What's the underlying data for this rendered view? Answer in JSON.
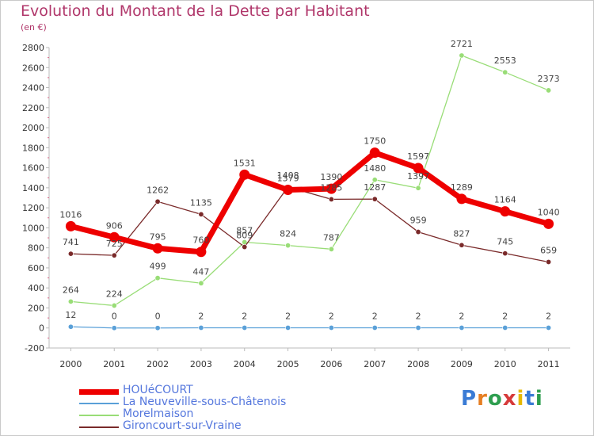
{
  "header": {
    "title": "Evolution du Montant de la Dette par Habitant",
    "subtitle": "(en €)"
  },
  "logo": {
    "text": "Proxiti",
    "colors": [
      "#3a7bd5",
      "#e67e22",
      "#2e9e4f",
      "#d63a3a",
      "#e6b800",
      "#3a7bd5",
      "#2e9e4f"
    ]
  },
  "chart_data": {
    "type": "line",
    "title": "Evolution du Montant de la Dette par Habitant",
    "ylabel": "(en €)",
    "x": [
      "2000",
      "2001",
      "2002",
      "2003",
      "2004",
      "2005",
      "2006",
      "2007",
      "2008",
      "2009",
      "2010",
      "2011"
    ],
    "ylim": [
      -200,
      2800
    ],
    "yticks": [
      -200,
      0,
      200,
      400,
      600,
      800,
      1000,
      1200,
      1400,
      1600,
      1800,
      2000,
      2200,
      2400,
      2600,
      2800
    ],
    "grid": false,
    "legend": "bottom-left",
    "series": [
      {
        "name": "HOUéCOURT",
        "color": "#ee0000",
        "values": [
          1016,
          906,
          795,
          760,
          1531,
          1379,
          1390,
          1750,
          1597,
          1289,
          1164,
          1040
        ]
      },
      {
        "name": "La Neuveville-sous-Châtenois",
        "color": "#5aa0d8",
        "values": [
          12,
          0,
          0,
          2,
          2,
          2,
          2,
          2,
          2,
          2,
          2,
          2
        ]
      },
      {
        "name": "Morelmaison",
        "color": "#99dd77",
        "values": [
          264,
          224,
          499,
          447,
          857,
          824,
          787,
          1480,
          1397,
          2721,
          2553,
          2373
        ]
      },
      {
        "name": "Gironcourt-sur-Vraine",
        "color": "#7a2a2a",
        "values": [
          741,
          725,
          1262,
          1135,
          809,
          1408,
          1285,
          1287,
          959,
          827,
          745,
          659
        ]
      }
    ]
  }
}
